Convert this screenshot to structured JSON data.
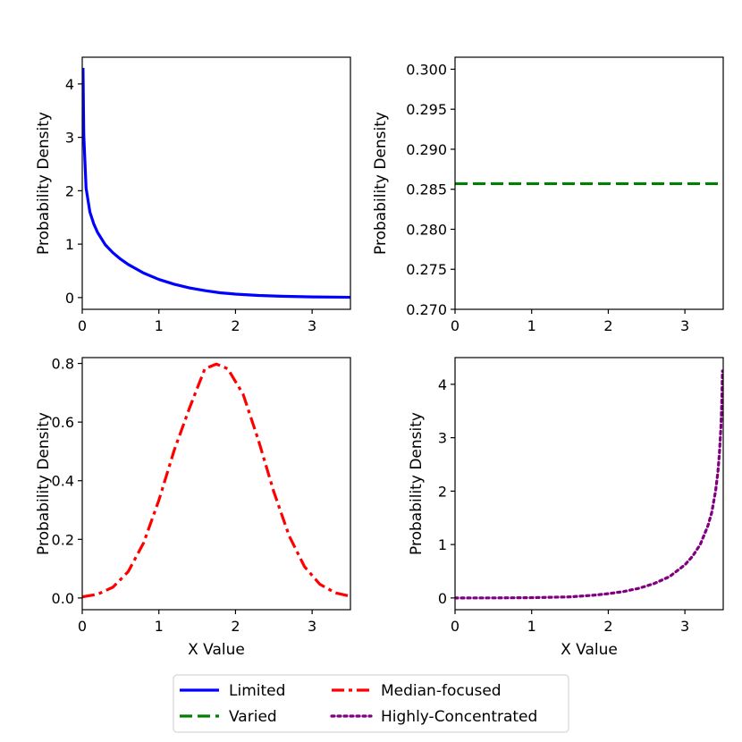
{
  "chart_data": [
    {
      "type": "line",
      "id": "limited",
      "series": [
        {
          "name": "Limited",
          "color": "#0000ff",
          "style": "solid"
        }
      ],
      "x": [
        0.01,
        0.02,
        0.05,
        0.1,
        0.15,
        0.2,
        0.3,
        0.4,
        0.5,
        0.6,
        0.8,
        1.0,
        1.2,
        1.4,
        1.6,
        1.8,
        2.0,
        2.3,
        2.6,
        3.0,
        3.5
      ],
      "y": [
        4.3,
        3.05,
        2.05,
        1.6,
        1.38,
        1.22,
        0.99,
        0.84,
        0.72,
        0.62,
        0.46,
        0.34,
        0.25,
        0.18,
        0.13,
        0.09,
        0.065,
        0.04,
        0.025,
        0.012,
        0.005
      ],
      "xlabel": "",
      "ylabel": "Probability Density",
      "xlim": [
        0,
        3.5
      ],
      "ylim": [
        -0.22,
        4.5
      ],
      "xticks": [
        "0",
        "1",
        "2",
        "3"
      ],
      "yticks": [
        "0",
        "1",
        "2",
        "3",
        "4"
      ]
    },
    {
      "type": "line",
      "id": "varied",
      "series": [
        {
          "name": "Varied",
          "color": "#008000",
          "style": "dashed"
        }
      ],
      "x": [
        0,
        3.5
      ],
      "y": [
        0.2857,
        0.2857
      ],
      "xlabel": "",
      "ylabel": "Probability Density",
      "xlim": [
        0,
        3.5
      ],
      "ylim": [
        0.27,
        0.3015
      ],
      "xticks": [
        "0",
        "1",
        "2",
        "3"
      ],
      "yticks": [
        "0.270",
        "0.275",
        "0.280",
        "0.285",
        "0.290",
        "0.295",
        "0.300"
      ]
    },
    {
      "type": "line",
      "id": "median",
      "series": [
        {
          "name": "Median-focused",
          "color": "#ff0000",
          "style": "dashdot"
        }
      ],
      "x": [
        0,
        0.2,
        0.4,
        0.6,
        0.8,
        1.0,
        1.2,
        1.4,
        1.6,
        1.75,
        1.9,
        2.1,
        2.3,
        2.5,
        2.7,
        2.9,
        3.1,
        3.3,
        3.5
      ],
      "y": [
        0.0037,
        0.0127,
        0.0366,
        0.0899,
        0.1876,
        0.3333,
        0.5039,
        0.6481,
        0.7818,
        0.7979,
        0.7818,
        0.6947,
        0.5375,
        0.3621,
        0.2119,
        0.1071,
        0.0469,
        0.0177,
        0.0058
      ],
      "xlabel": "X Value",
      "ylabel": "Probability Density",
      "xlim": [
        0,
        3.5
      ],
      "ylim": [
        -0.04,
        0.82
      ],
      "xticks": [
        "0",
        "1",
        "2",
        "3"
      ],
      "yticks": [
        "0.0",
        "0.2",
        "0.4",
        "0.6",
        "0.8"
      ]
    },
    {
      "type": "line",
      "id": "concentrated",
      "series": [
        {
          "name": "Highly-Concentrated",
          "color": "#800080",
          "style": "dotted"
        }
      ],
      "x": [
        0,
        0.5,
        1.0,
        1.5,
        1.8,
        2.0,
        2.2,
        2.4,
        2.6,
        2.8,
        3.0,
        3.1,
        3.2,
        3.3,
        3.35,
        3.4,
        3.43,
        3.45,
        3.47,
        3.48,
        3.49
      ],
      "y": [
        0,
        0.001,
        0.005,
        0.02,
        0.05,
        0.08,
        0.12,
        0.18,
        0.27,
        0.4,
        0.62,
        0.78,
        1.0,
        1.35,
        1.6,
        2.0,
        2.35,
        2.7,
        3.2,
        3.6,
        4.25
      ],
      "xlabel": "X Value",
      "ylabel": "Probability Density",
      "xlim": [
        0,
        3.5
      ],
      "ylim": [
        -0.22,
        4.5
      ],
      "xticks": [
        "0",
        "1",
        "2",
        "3"
      ],
      "yticks": [
        "0",
        "1",
        "2",
        "3",
        "4"
      ]
    }
  ],
  "legend": {
    "placement": "bottom-center",
    "items": [
      {
        "label": "Limited",
        "color": "#0000ff",
        "style": "solid"
      },
      {
        "label": "Median-focused",
        "color": "#ff0000",
        "style": "dashdot"
      },
      {
        "label": "Varied",
        "color": "#008000",
        "style": "dashed"
      },
      {
        "label": "Highly-Concentrated",
        "color": "#800080",
        "style": "dotted"
      }
    ]
  }
}
